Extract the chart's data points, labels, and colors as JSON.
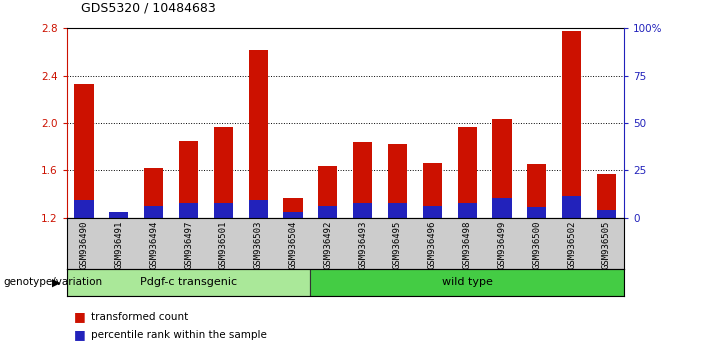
{
  "title": "GDS5320 / 10484683",
  "samples": [
    "GSM936490",
    "GSM936491",
    "GSM936494",
    "GSM936497",
    "GSM936501",
    "GSM936503",
    "GSM936504",
    "GSM936492",
    "GSM936493",
    "GSM936495",
    "GSM936496",
    "GSM936498",
    "GSM936499",
    "GSM936500",
    "GSM936502",
    "GSM936505"
  ],
  "red_values": [
    2.33,
    1.22,
    1.62,
    1.85,
    1.97,
    2.62,
    1.37,
    1.64,
    1.84,
    1.82,
    1.66,
    1.97,
    2.03,
    1.65,
    2.78,
    1.57
  ],
  "blue_percentile": [
    12,
    4,
    8,
    10,
    10,
    12,
    4,
    8,
    10,
    10,
    8,
    10,
    13,
    7,
    14,
    5
  ],
  "ymin": 1.2,
  "ymax": 2.8,
  "yticks_red": [
    1.2,
    1.6,
    2.0,
    2.4,
    2.8
  ],
  "yticks_blue": [
    0,
    25,
    50,
    75,
    100
  ],
  "bar_width": 0.55,
  "red_color": "#cc1100",
  "blue_color": "#2222bb",
  "group1_label": "Pdgf-c transgenic",
  "group1_count": 7,
  "group2_label": "wild type",
  "group2_count": 9,
  "group1_color": "#aae899",
  "group2_color": "#44cc44",
  "genotype_label": "genotype/variation",
  "legend1": "transformed count",
  "legend2": "percentile rank within the sample",
  "bg_color": "#ffffff",
  "tick_area_color": "#cccccc",
  "title_color": "#000000",
  "red_axis_color": "#cc1100",
  "blue_axis_color": "#2222bb"
}
